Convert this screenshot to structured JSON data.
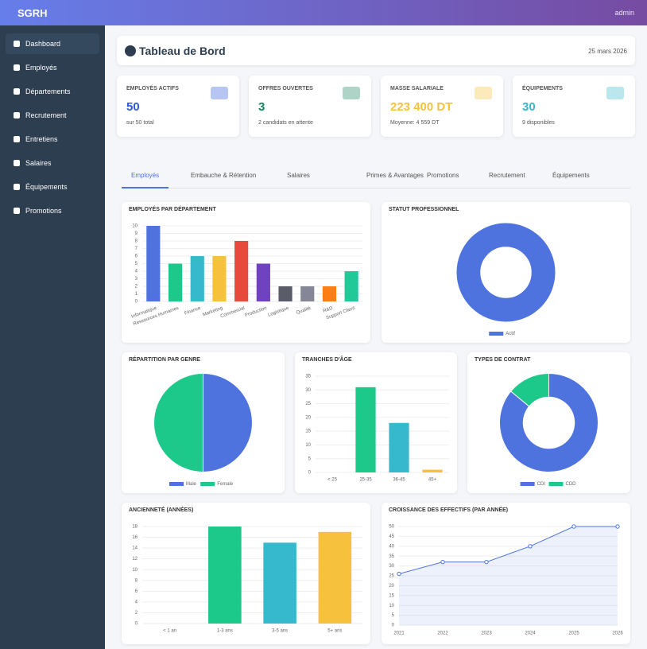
{
  "navbar": {
    "brand": "SGRH",
    "user": "admin"
  },
  "sidebar": [
    "Dashboard",
    "Employés",
    "Départements",
    "Recrutement",
    "Entretiens",
    "Salaires",
    "Équipements",
    "Promotions"
  ],
  "header": {
    "title": "Tableau de Bord",
    "date": "25 mars 2026"
  },
  "cards": [
    {
      "label": "EMPLOYÉS ACTIFS",
      "value": "50",
      "sub": "sur 50 total",
      "color": "#2e59d9"
    },
    {
      "label": "OFFRES OUVERTES",
      "value": "3",
      "sub": "2 candidats en attente",
      "color": "#13855c"
    },
    {
      "label": "MASSE SALARIALE",
      "value": "223 400 DT",
      "sub": "Moyenne: 4 559 DT",
      "color": "#f6c23e"
    },
    {
      "label": "ÉQUIPEMENTS",
      "value": "30",
      "sub": "9 disponibles",
      "color": "#36b9cc"
    }
  ],
  "tabs": [
    "Employés",
    "Embauche & Rétention",
    "Salaires",
    "Primes & Avantages",
    "Promotions",
    "Recrutement",
    "Équipements"
  ],
  "chart_data": [
    {
      "type": "bar",
      "title": "EMPLOYÉS PAR DÉPARTEMENT",
      "categories": [
        "Informatique",
        "Ressources Humaines",
        "Finance",
        "Marketing",
        "Commercial",
        "Production",
        "Logistique",
        "Qualité",
        "R&D",
        "Support Client"
      ],
      "values": [
        10,
        5,
        6,
        6,
        8,
        5,
        2,
        2,
        2,
        4
      ],
      "colors": [
        "#4e73df",
        "#1cc88a",
        "#36b9cc",
        "#f6c23e",
        "#e74a3b",
        "#6f42c1",
        "#5a5c69",
        "#858796",
        "#fd7e14",
        "#20c997"
      ],
      "ylim": [
        0,
        10
      ],
      "yticks": [
        0,
        1,
        2,
        3,
        4,
        5,
        6,
        7,
        8,
        9,
        10
      ],
      "grid": true
    },
    {
      "type": "doughnut",
      "title": "STATUT PROFESSIONNEL",
      "categories": [
        "Actif"
      ],
      "values": [
        50
      ],
      "colors": [
        "#4e73df"
      ]
    },
    {
      "type": "pie",
      "title": "RÉPARTITION PAR GENRE",
      "categories": [
        "Male",
        "Female"
      ],
      "values": [
        25,
        25
      ],
      "colors": [
        "#4e73df",
        "#1cc88a"
      ]
    },
    {
      "type": "bar",
      "title": "TRANCHES D'ÂGE",
      "categories": [
        "< 25",
        "25-35",
        "36-45",
        "45+"
      ],
      "values": [
        0,
        31,
        18,
        1
      ],
      "colors": [
        "#4e73df",
        "#1cc88a",
        "#36b9cc",
        "#f6c23e"
      ],
      "ylim": [
        0,
        35
      ],
      "yticks": [
        0,
        5,
        10,
        15,
        20,
        25,
        30,
        35
      ],
      "grid": true
    },
    {
      "type": "doughnut",
      "title": "TYPES DE CONTRAT",
      "categories": [
        "CDI",
        "CDD"
      ],
      "values": [
        43,
        7
      ],
      "colors": [
        "#4e73df",
        "#1cc88a"
      ]
    },
    {
      "type": "bar",
      "title": "ANCIENNETÉ (ANNÉES)",
      "categories": [
        "< 1 an",
        "1-3 ans",
        "3-5 ans",
        "5+ ans"
      ],
      "values": [
        0,
        18,
        15,
        17
      ],
      "colors": [
        "#4e73df",
        "#1cc88a",
        "#36b9cc",
        "#f6c23e"
      ],
      "ylim": [
        0,
        18
      ],
      "yticks": [
        0,
        2,
        4,
        6,
        8,
        10,
        12,
        14,
        16,
        18
      ],
      "grid": true
    },
    {
      "type": "line",
      "title": "CROISSANCE DES EFFECTIFS (PAR ANNÉE)",
      "categories": [
        "2021",
        "2022",
        "2023",
        "2024",
        "2025",
        "2026"
      ],
      "values": [
        26,
        32,
        32,
        40,
        50,
        50
      ],
      "color": "#4e73df",
      "ylim": [
        0,
        50
      ],
      "yticks": [
        0,
        5,
        10,
        15,
        20,
        25,
        30,
        35,
        40,
        45,
        50
      ],
      "grid": true
    }
  ]
}
